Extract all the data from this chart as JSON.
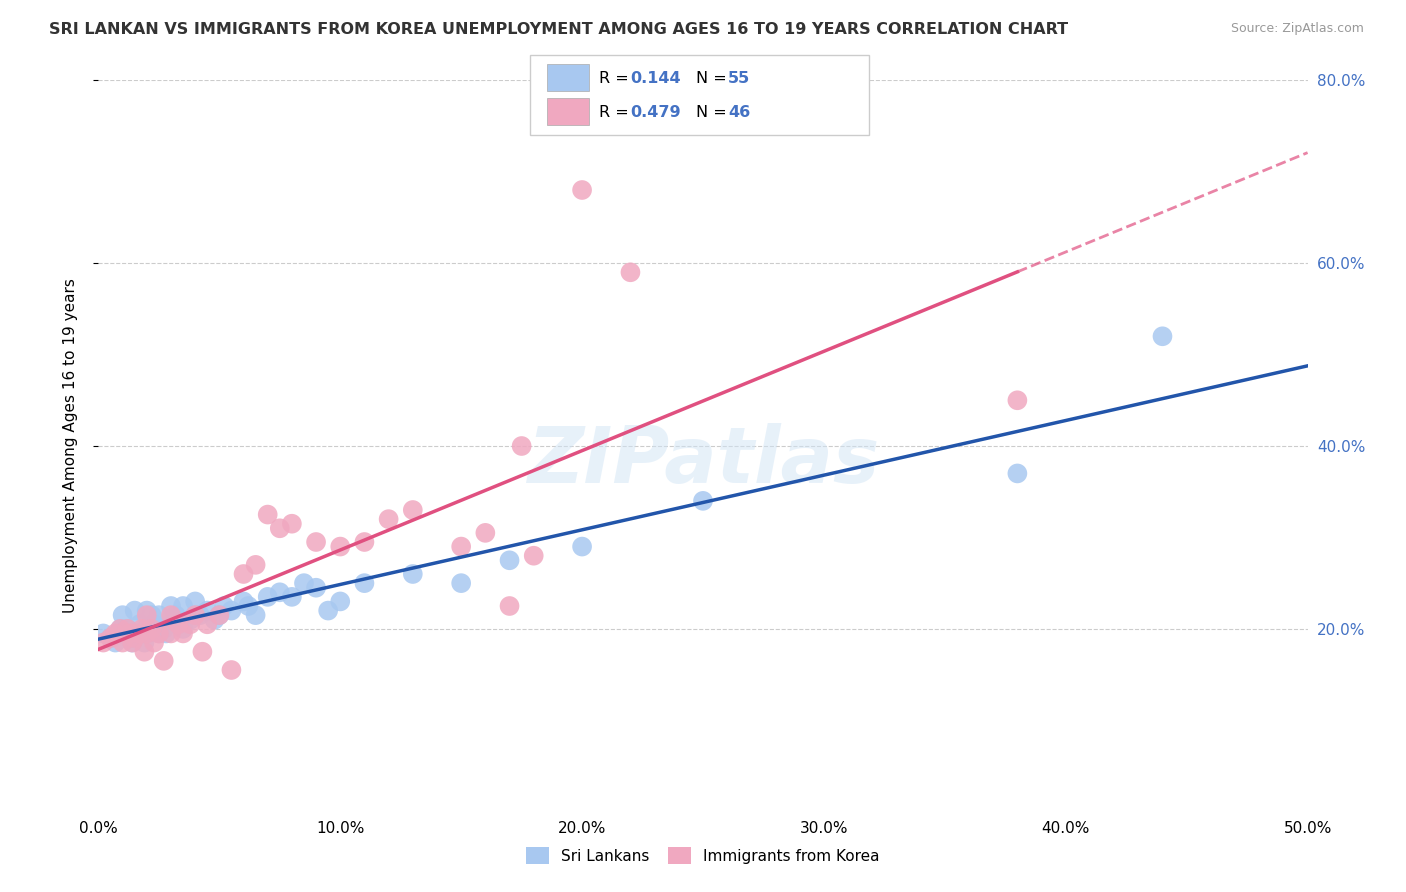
{
  "title": "SRI LANKAN VS IMMIGRANTS FROM KOREA UNEMPLOYMENT AMONG AGES 16 TO 19 YEARS CORRELATION CHART",
  "source": "Source: ZipAtlas.com",
  "ylabel": "Unemployment Among Ages 16 to 19 years",
  "xlim": [
    0.0,
    0.5
  ],
  "ylim": [
    0.0,
    0.8
  ],
  "xtick_labels": [
    "0.0%",
    "10.0%",
    "20.0%",
    "30.0%",
    "40.0%",
    "50.0%"
  ],
  "xtick_vals": [
    0.0,
    0.1,
    0.2,
    0.3,
    0.4,
    0.5
  ],
  "ytick_vals": [
    0.2,
    0.4,
    0.6,
    0.8
  ],
  "ytick_labels": [
    "20.0%",
    "40.0%",
    "60.0%",
    "80.0%"
  ],
  "legend_text_color": "#4472C4",
  "color_sri_fill": "#A8C8F0",
  "color_korea_fill": "#F0A8C0",
  "color_sri_line": "#2255AA",
  "color_korea_line": "#E05080",
  "sri_scatter_x": [
    0.002,
    0.005,
    0.007,
    0.009,
    0.01,
    0.01,
    0.012,
    0.013,
    0.014,
    0.015,
    0.015,
    0.017,
    0.018,
    0.019,
    0.02,
    0.02,
    0.02,
    0.022,
    0.023,
    0.025,
    0.025,
    0.027,
    0.028,
    0.03,
    0.03,
    0.032,
    0.035,
    0.035,
    0.038,
    0.04,
    0.04,
    0.042,
    0.045,
    0.048,
    0.05,
    0.052,
    0.055,
    0.06,
    0.062,
    0.065,
    0.07,
    0.075,
    0.08,
    0.085,
    0.09,
    0.095,
    0.1,
    0.11,
    0.13,
    0.15,
    0.17,
    0.2,
    0.25,
    0.38,
    0.44
  ],
  "sri_scatter_y": [
    0.195,
    0.19,
    0.185,
    0.2,
    0.195,
    0.215,
    0.2,
    0.19,
    0.185,
    0.195,
    0.22,
    0.205,
    0.195,
    0.185,
    0.2,
    0.195,
    0.22,
    0.215,
    0.205,
    0.195,
    0.215,
    0.2,
    0.195,
    0.21,
    0.225,
    0.215,
    0.2,
    0.225,
    0.21,
    0.215,
    0.23,
    0.215,
    0.22,
    0.21,
    0.215,
    0.225,
    0.22,
    0.23,
    0.225,
    0.215,
    0.235,
    0.24,
    0.235,
    0.25,
    0.245,
    0.22,
    0.23,
    0.25,
    0.26,
    0.25,
    0.275,
    0.29,
    0.34,
    0.37,
    0.52
  ],
  "korea_scatter_x": [
    0.002,
    0.005,
    0.007,
    0.009,
    0.01,
    0.012,
    0.013,
    0.014,
    0.015,
    0.017,
    0.018,
    0.019,
    0.02,
    0.02,
    0.022,
    0.023,
    0.025,
    0.027,
    0.03,
    0.03,
    0.033,
    0.035,
    0.038,
    0.04,
    0.043,
    0.045,
    0.05,
    0.055,
    0.06,
    0.065,
    0.07,
    0.075,
    0.08,
    0.09,
    0.1,
    0.11,
    0.12,
    0.13,
    0.15,
    0.16,
    0.17,
    0.175,
    0.18,
    0.2,
    0.22,
    0.38
  ],
  "korea_scatter_y": [
    0.185,
    0.19,
    0.195,
    0.2,
    0.185,
    0.2,
    0.195,
    0.185,
    0.19,
    0.195,
    0.2,
    0.175,
    0.195,
    0.215,
    0.2,
    0.185,
    0.195,
    0.165,
    0.195,
    0.215,
    0.205,
    0.195,
    0.205,
    0.215,
    0.175,
    0.205,
    0.215,
    0.155,
    0.26,
    0.27,
    0.325,
    0.31,
    0.315,
    0.295,
    0.29,
    0.295,
    0.32,
    0.33,
    0.29,
    0.305,
    0.225,
    0.4,
    0.28,
    0.68,
    0.59,
    0.45
  ],
  "watermark": "ZIPatlas",
  "background_color": "#FFFFFF",
  "grid_color": "#CCCCCC"
}
